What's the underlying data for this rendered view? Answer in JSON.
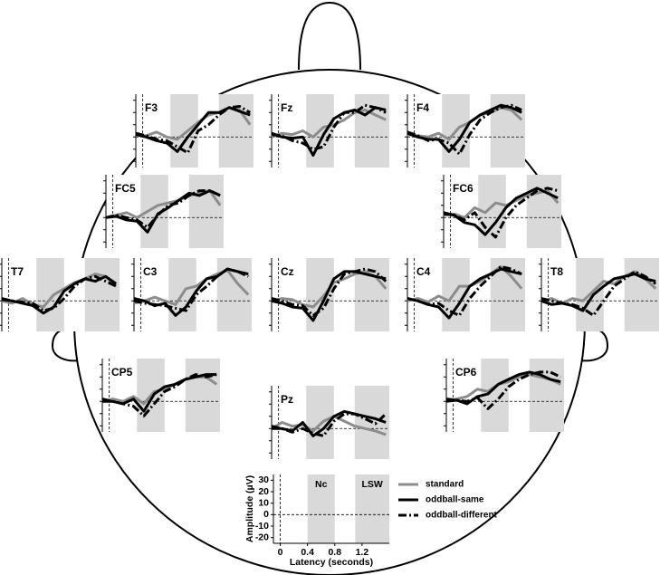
{
  "chart_data": [
    {
      "type": "line",
      "title": "F3",
      "x": [
        -0.1,
        0.05,
        0.2,
        0.35,
        0.5,
        0.65,
        0.8,
        0.95,
        1.1,
        1.25,
        1.4,
        1.55
      ],
      "xlim": [
        -0.1,
        1.6
      ],
      "ylim": [
        -25,
        35
      ],
      "shade": [
        [
          0.4,
          0.8
        ],
        [
          1.1,
          1.6
        ]
      ],
      "series": [
        {
          "values": [
            2,
            1,
            4,
            0,
            -2,
            5,
            12,
            18,
            20,
            24,
            22,
            10
          ]
        },
        {
          "values": [
            2,
            0,
            -3,
            -5,
            -12,
            0,
            10,
            20,
            20,
            24,
            21,
            18
          ]
        },
        {
          "values": [
            3,
            1,
            -2,
            -3,
            -8,
            -13,
            5,
            10,
            18,
            24,
            25,
            20
          ]
        }
      ]
    },
    {
      "type": "line",
      "title": "Fz",
      "x": [
        -0.1,
        0.05,
        0.2,
        0.35,
        0.5,
        0.65,
        0.8,
        0.95,
        1.1,
        1.25,
        1.4,
        1.55
      ],
      "xlim": [
        -0.1,
        1.6
      ],
      "ylim": [
        -25,
        35
      ],
      "shade": [
        [
          0.4,
          0.8
        ],
        [
          1.1,
          1.6
        ]
      ],
      "series": [
        {
          "values": [
            0,
            3,
            2,
            5,
            0,
            8,
            10,
            14,
            20,
            22,
            18,
            14
          ]
        },
        {
          "values": [
            3,
            0,
            -1,
            0,
            -15,
            2,
            15,
            20,
            22,
            18,
            24,
            22
          ]
        },
        {
          "values": [
            2,
            1,
            -3,
            -5,
            -10,
            -8,
            8,
            20,
            20,
            26,
            24,
            20
          ]
        }
      ]
    },
    {
      "type": "line",
      "title": "F4",
      "x": [
        -0.1,
        0.05,
        0.2,
        0.35,
        0.5,
        0.65,
        0.8,
        0.95,
        1.1,
        1.25,
        1.4,
        1.55
      ],
      "xlim": [
        -0.1,
        1.6
      ],
      "ylim": [
        -25,
        35
      ],
      "shade": [
        [
          0.4,
          0.8
        ],
        [
          1.1,
          1.6
        ]
      ],
      "series": [
        {
          "values": [
            2,
            1,
            0,
            3,
            -2,
            8,
            12,
            18,
            20,
            24,
            22,
            14
          ]
        },
        {
          "values": [
            3,
            0,
            -2,
            -2,
            -12,
            -2,
            12,
            18,
            22,
            26,
            24,
            20
          ]
        },
        {
          "values": [
            4,
            1,
            -3,
            -2,
            -5,
            -14,
            2,
            14,
            20,
            24,
            26,
            22
          ]
        }
      ]
    },
    {
      "type": "line",
      "title": "FC5",
      "x": [
        -0.1,
        0.05,
        0.2,
        0.35,
        0.5,
        0.65,
        0.8,
        0.95,
        1.1,
        1.25,
        1.4,
        1.55
      ],
      "xlim": [
        -0.1,
        1.6
      ],
      "ylim": [
        -25,
        35
      ],
      "shade": [
        [
          0.4,
          0.8
        ],
        [
          1.1,
          1.6
        ]
      ],
      "series": [
        {
          "values": [
            0,
            2,
            4,
            0,
            5,
            10,
            12,
            14,
            18,
            20,
            22,
            10
          ]
        },
        {
          "values": [
            0,
            1,
            -2,
            -3,
            -12,
            3,
            8,
            14,
            20,
            18,
            22,
            18
          ]
        },
        {
          "values": [
            0,
            2,
            0,
            -2,
            -8,
            2,
            10,
            12,
            18,
            22,
            22,
            18
          ]
        }
      ]
    },
    {
      "type": "line",
      "title": "FC6",
      "x": [
        -0.1,
        0.05,
        0.2,
        0.35,
        0.5,
        0.65,
        0.8,
        0.95,
        1.1,
        1.25,
        1.4,
        1.55
      ],
      "xlim": [
        -0.1,
        1.6
      ],
      "ylim": [
        -25,
        35
      ],
      "shade": [
        [
          0.4,
          0.8
        ],
        [
          1.1,
          1.6
        ]
      ],
      "series": [
        {
          "values": [
            2,
            3,
            0,
            8,
            4,
            12,
            10,
            14,
            18,
            20,
            22,
            12
          ]
        },
        {
          "values": [
            3,
            2,
            -4,
            -6,
            -14,
            -4,
            8,
            16,
            20,
            24,
            20,
            16
          ]
        },
        {
          "values": [
            4,
            2,
            -2,
            4,
            -8,
            -16,
            0,
            10,
            16,
            22,
            24,
            22
          ]
        }
      ]
    },
    {
      "type": "line",
      "title": "T7",
      "x": [
        -0.1,
        0.05,
        0.2,
        0.35,
        0.5,
        0.65,
        0.8,
        0.95,
        1.1,
        1.25,
        1.4,
        1.55
      ],
      "xlim": [
        -0.1,
        1.6
      ],
      "ylim": [
        -25,
        35
      ],
      "shade": [
        [
          0.4,
          0.8
        ],
        [
          1.1,
          1.6
        ]
      ],
      "series": [
        {
          "values": [
            0,
            -2,
            2,
            -3,
            -5,
            5,
            10,
            15,
            18,
            22,
            20,
            12
          ]
        },
        {
          "values": [
            1,
            0,
            -2,
            -4,
            -10,
            -5,
            8,
            14,
            18,
            16,
            20,
            14
          ]
        },
        {
          "values": [
            2,
            0,
            -1,
            -2,
            -8,
            -6,
            2,
            12,
            18,
            20,
            16,
            12
          ]
        }
      ]
    },
    {
      "type": "line",
      "title": "C3",
      "x": [
        -0.1,
        0.05,
        0.2,
        0.35,
        0.5,
        0.65,
        0.8,
        0.95,
        1.1,
        1.25,
        1.4,
        1.55
      ],
      "xlim": [
        -0.1,
        1.6
      ],
      "ylim": [
        -25,
        35
      ],
      "shade": [
        [
          0.4,
          0.8
        ],
        [
          1.1,
          1.6
        ]
      ],
      "series": [
        {
          "values": [
            -2,
            0,
            3,
            0,
            -3,
            10,
            12,
            18,
            22,
            25,
            14,
            5
          ]
        },
        {
          "values": [
            2,
            0,
            -4,
            -2,
            -12,
            -5,
            8,
            18,
            20,
            26,
            24,
            22
          ]
        },
        {
          "values": [
            0,
            -2,
            -3,
            -4,
            -6,
            -8,
            5,
            12,
            20,
            26,
            24,
            20
          ]
        }
      ]
    },
    {
      "type": "line",
      "title": "Cz",
      "x": [
        -0.1,
        0.05,
        0.2,
        0.35,
        0.5,
        0.65,
        0.8,
        0.95,
        1.1,
        1.25,
        1.4,
        1.55
      ],
      "xlim": [
        -0.1,
        1.6
      ],
      "ylim": [
        -25,
        35
      ],
      "shade": [
        [
          0.4,
          0.8
        ],
        [
          1.1,
          1.6
        ]
      ],
      "series": [
        {
          "values": [
            0,
            2,
            1,
            -3,
            -5,
            4,
            15,
            18,
            22,
            24,
            20,
            10
          ]
        },
        {
          "values": [
            0,
            -2,
            -5,
            -6,
            -16,
            0,
            18,
            24,
            24,
            22,
            20,
            18
          ]
        },
        {
          "values": [
            2,
            0,
            -3,
            -4,
            -12,
            -6,
            10,
            22,
            24,
            26,
            24,
            16
          ]
        }
      ]
    },
    {
      "type": "line",
      "title": "C4",
      "x": [
        -0.1,
        0.05,
        0.2,
        0.35,
        0.5,
        0.65,
        0.8,
        0.95,
        1.1,
        1.25,
        1.4,
        1.55
      ],
      "xlim": [
        -0.1,
        1.6
      ],
      "ylim": [
        -25,
        35
      ],
      "shade": [
        [
          0.4,
          0.8
        ],
        [
          1.1,
          1.6
        ]
      ],
      "series": [
        {
          "values": [
            0,
            2,
            -1,
            4,
            0,
            12,
            12,
            16,
            22,
            28,
            20,
            10
          ]
        },
        {
          "values": [
            2,
            0,
            -3,
            -5,
            -14,
            -2,
            12,
            18,
            22,
            26,
            24,
            22
          ]
        },
        {
          "values": [
            2,
            0,
            -3,
            -2,
            -8,
            -12,
            2,
            12,
            20,
            28,
            26,
            22
          ]
        }
      ]
    },
    {
      "type": "line",
      "title": "T8",
      "x": [
        -0.1,
        0.05,
        0.2,
        0.35,
        0.5,
        0.65,
        0.8,
        0.95,
        1.1,
        1.25,
        1.4,
        1.55
      ],
      "xlim": [
        -0.1,
        1.6
      ],
      "ylim": [
        -25,
        35
      ],
      "shade": [
        [
          0.4,
          0.8
        ],
        [
          1.1,
          1.6
        ]
      ],
      "series": [
        {
          "values": [
            0,
            2,
            -2,
            2,
            0,
            8,
            16,
            14,
            20,
            24,
            18,
            10
          ]
        },
        {
          "values": [
            0,
            -3,
            -2,
            -4,
            -8,
            5,
            12,
            18,
            20,
            22,
            18,
            16
          ]
        },
        {
          "values": [
            2,
            0,
            -2,
            -3,
            -6,
            -12,
            0,
            12,
            18,
            24,
            20,
            14
          ]
        }
      ]
    },
    {
      "type": "line",
      "title": "CP5",
      "x": [
        -0.1,
        0.05,
        0.2,
        0.35,
        0.5,
        0.65,
        0.8,
        0.95,
        1.1,
        1.25,
        1.4,
        1.55
      ],
      "xlim": [
        -0.1,
        1.6
      ],
      "ylim": [
        -25,
        35
      ],
      "shade": [
        [
          0.4,
          0.8
        ],
        [
          1.1,
          1.6
        ]
      ],
      "series": [
        {
          "values": [
            0,
            2,
            0,
            4,
            -2,
            8,
            10,
            14,
            18,
            20,
            20,
            14
          ]
        },
        {
          "values": [
            0,
            0,
            -2,
            2,
            -8,
            6,
            12,
            14,
            18,
            20,
            22,
            22
          ]
        },
        {
          "values": [
            2,
            0,
            -2,
            -4,
            -12,
            -2,
            8,
            12,
            18,
            22,
            20,
            22
          ]
        }
      ]
    },
    {
      "type": "line",
      "title": "Pz",
      "x": [
        -0.1,
        0.05,
        0.2,
        0.35,
        0.5,
        0.65,
        0.8,
        0.95,
        1.1,
        1.25,
        1.4,
        1.55
      ],
      "xlim": [
        -0.1,
        1.6
      ],
      "ylim": [
        -25,
        35
      ],
      "shade": [
        [
          0.4,
          0.8
        ],
        [
          1.1,
          1.6
        ]
      ],
      "series": [
        {
          "values": [
            0,
            5,
            2,
            3,
            -2,
            6,
            10,
            6,
            2,
            0,
            -2,
            -5
          ]
        },
        {
          "values": [
            0,
            0,
            -2,
            5,
            -6,
            0,
            10,
            14,
            12,
            10,
            8,
            5
          ]
        },
        {
          "values": [
            2,
            0,
            -3,
            0,
            -4,
            -6,
            6,
            12,
            12,
            8,
            4,
            12
          ]
        }
      ]
    },
    {
      "type": "line",
      "title": "CP6",
      "x": [
        -0.1,
        0.05,
        0.2,
        0.35,
        0.5,
        0.65,
        0.8,
        0.95,
        1.1,
        1.25,
        1.4,
        1.55
      ],
      "xlim": [
        -0.1,
        1.6
      ],
      "ylim": [
        -25,
        35
      ],
      "shade": [
        [
          0.4,
          0.8
        ],
        [
          1.1,
          1.6
        ]
      ],
      "series": [
        {
          "values": [
            0,
            2,
            4,
            10,
            8,
            14,
            16,
            20,
            22,
            20,
            18,
            14
          ]
        },
        {
          "values": [
            0,
            1,
            -2,
            4,
            6,
            14,
            18,
            22,
            24,
            22,
            18,
            16
          ]
        },
        {
          "values": [
            2,
            1,
            0,
            3,
            -6,
            2,
            12,
            18,
            22,
            24,
            24,
            20
          ]
        }
      ]
    },
    {
      "type": "key",
      "xlabel": "Latency (seconds)",
      "ylabel": "Amplitude (µV)",
      "xlim": [
        -0.1,
        1.6
      ],
      "ylim": [
        -25,
        35
      ],
      "xticks": [
        0,
        0.4,
        0.8,
        1.2
      ],
      "yticks": [
        -20,
        -10,
        0,
        10,
        20,
        30
      ],
      "shade": [
        [
          0.4,
          0.8
        ],
        [
          1.1,
          1.6
        ]
      ],
      "shade_labels": [
        "Nc",
        "LSW"
      ],
      "series": [
        {
          "name": "standard",
          "color": "#8c8c8c",
          "dash": "solid"
        },
        {
          "name": "oddball-same",
          "color": "#000000",
          "dash": "solid"
        },
        {
          "name": "oddball-different",
          "color": "#000000",
          "dash": "dash-dot"
        }
      ]
    }
  ]
}
